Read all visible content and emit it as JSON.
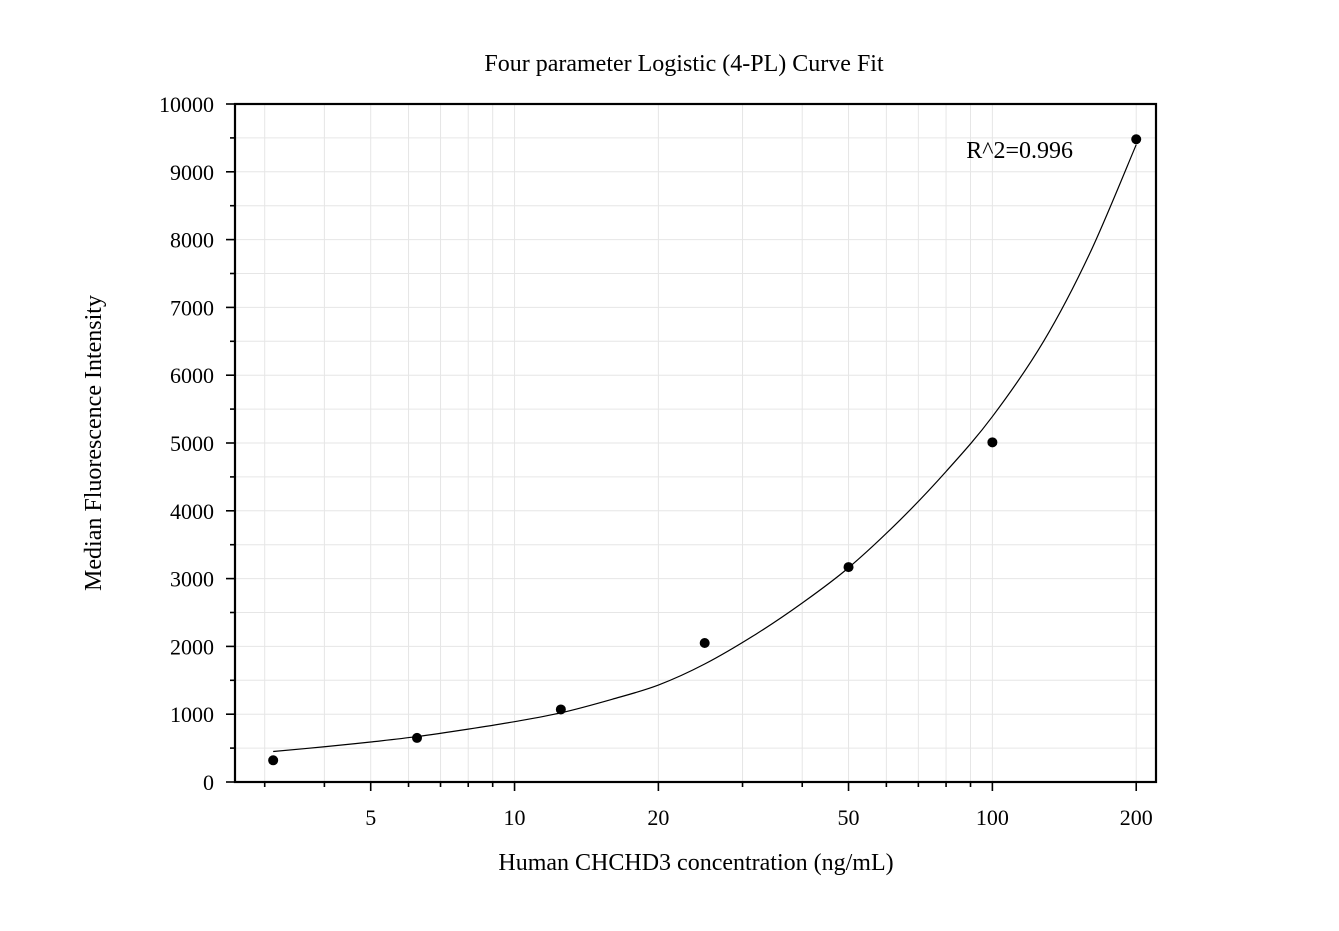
{
  "chart_data": {
    "type": "scatter",
    "title": "Four parameter Logistic (4-PL) Curve Fit",
    "xlabel": "Human CHCHD3 concentration (ng/mL)",
    "ylabel": "Median Fluorescence Intensity",
    "x_scale": "log",
    "xlim": [
      2.6,
      220
    ],
    "ylim": [
      0,
      10000
    ],
    "x_ticks": [
      5,
      10,
      20,
      50,
      100,
      200
    ],
    "x_tick_labels": [
      "5",
      "10",
      "20",
      "50",
      "100",
      "200"
    ],
    "y_ticks": [
      0,
      1000,
      2000,
      3000,
      4000,
      5000,
      6000,
      7000,
      8000,
      9000,
      10000
    ],
    "y_tick_labels": [
      "0",
      "1000",
      "2000",
      "3000",
      "4000",
      "5000",
      "6000",
      "7000",
      "8000",
      "9000",
      "10000"
    ],
    "grid": true,
    "series": [
      {
        "x": [
          3.125,
          6.25,
          12.5,
          25,
          50,
          100,
          200
        ],
        "y": [
          320,
          650,
          1070,
          2050,
          3170,
          5010,
          9480
        ]
      }
    ],
    "fit_curve": {
      "x": [
        3.125,
        4,
        5,
        6.25,
        8,
        10,
        12.5,
        16,
        20,
        25,
        32,
        40,
        50,
        64,
        80,
        100,
        128,
        160,
        200
      ],
      "y": [
        450,
        520,
        590,
        670,
        780,
        890,
        1020,
        1220,
        1430,
        1740,
        2180,
        2640,
        3160,
        3860,
        4580,
        5390,
        6500,
        7800,
        9400
      ]
    },
    "annotations": [
      {
        "text": "R^2=0.996"
      }
    ],
    "colors": {
      "points": "#000000",
      "curve": "#000000",
      "grid": "#e6e6e6",
      "frame": "#000000"
    }
  }
}
